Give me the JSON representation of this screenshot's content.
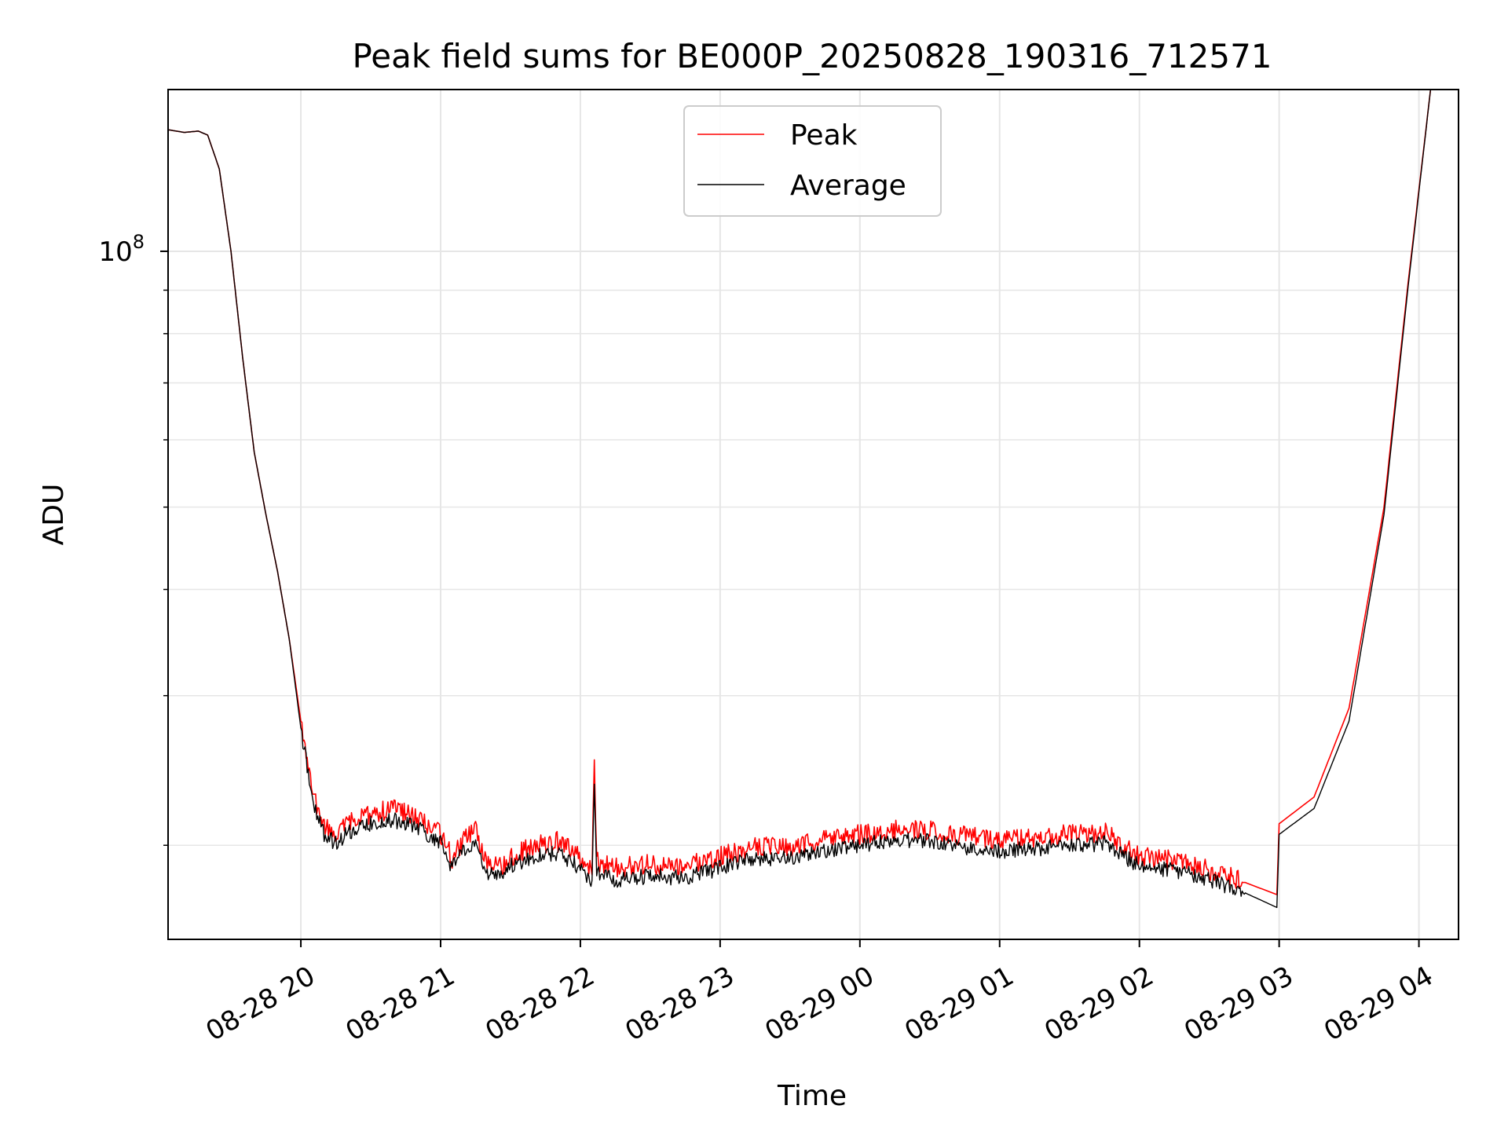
{
  "chart_data": {
    "type": "line",
    "title": "Peak field sums for BE000P_20250828_190316_712571",
    "xlabel": "Time",
    "ylabel": "ADU",
    "yscale": "log",
    "ylim": [
      15500000,
      155000000
    ],
    "y_major_tick": {
      "value": 100000000,
      "base": "10",
      "exp": "8"
    },
    "y_minor_ticks": [
      20000000,
      30000000,
      40000000,
      50000000,
      60000000,
      70000000,
      80000000,
      90000000
    ],
    "xlim": [
      "2025-08-28 19:03",
      "2025-08-29 04:17"
    ],
    "x_ticks": [
      {
        "value": "2025-08-28 20:00",
        "label": "08-28 20"
      },
      {
        "value": "2025-08-28 21:00",
        "label": "08-28 21"
      },
      {
        "value": "2025-08-28 22:00",
        "label": "08-28 22"
      },
      {
        "value": "2025-08-28 23:00",
        "label": "08-28 23"
      },
      {
        "value": "2025-08-29 00:00",
        "label": "08-29 00"
      },
      {
        "value": "2025-08-29 01:00",
        "label": "08-29 01"
      },
      {
        "value": "2025-08-29 02:00",
        "label": "08-29 02"
      },
      {
        "value": "2025-08-29 03:00",
        "label": "08-29 03"
      },
      {
        "value": "2025-08-29 04:00",
        "label": "08-29 04"
      }
    ],
    "grid": true,
    "legend_position": "upper center",
    "series": [
      {
        "name": "Peak",
        "color": "#ff0000",
        "points": [
          [
            "2025-08-28 19:03",
            139000000
          ],
          [
            "2025-08-28 19:10",
            138000000
          ],
          [
            "2025-08-28 19:16",
            138500000
          ],
          [
            "2025-08-28 19:20",
            137000000
          ],
          [
            "2025-08-28 19:25",
            125000000
          ],
          [
            "2025-08-28 19:30",
            100000000
          ],
          [
            "2025-08-28 19:35",
            75000000
          ],
          [
            "2025-08-28 19:40",
            58000000
          ],
          [
            "2025-08-28 19:45",
            49000000
          ],
          [
            "2025-08-28 19:50",
            42000000
          ],
          [
            "2025-08-28 19:55",
            35000000
          ],
          [
            "2025-08-28 20:00",
            28000000
          ],
          [
            "2025-08-28 20:05",
            23000000
          ],
          [
            "2025-08-28 20:10",
            21000000
          ],
          [
            "2025-08-28 20:15",
            20500000
          ],
          [
            "2025-08-28 20:20",
            21200000
          ],
          [
            "2025-08-28 20:30",
            21800000
          ],
          [
            "2025-08-28 20:40",
            22100000
          ],
          [
            "2025-08-28 20:50",
            21600000
          ],
          [
            "2025-08-28 21:00",
            20600000
          ],
          [
            "2025-08-28 21:05",
            19300000
          ],
          [
            "2025-08-28 21:10",
            20300000
          ],
          [
            "2025-08-28 21:15",
            20800000
          ],
          [
            "2025-08-28 21:20",
            19000000
          ],
          [
            "2025-08-28 21:25",
            18800000
          ],
          [
            "2025-08-28 21:30",
            19400000
          ],
          [
            "2025-08-28 21:40",
            20000000
          ],
          [
            "2025-08-28 21:50",
            20200000
          ],
          [
            "2025-08-28 22:00",
            19400000
          ],
          [
            "2025-08-28 22:05",
            18800000
          ],
          [
            "2025-08-28 22:06",
            24700000
          ],
          [
            "2025-08-28 22:07",
            19200000
          ],
          [
            "2025-08-28 22:15",
            18800000
          ],
          [
            "2025-08-28 22:30",
            19000000
          ],
          [
            "2025-08-28 22:45",
            18900000
          ],
          [
            "2025-08-28 23:00",
            19400000
          ],
          [
            "2025-08-28 23:15",
            19900000
          ],
          [
            "2025-08-28 23:30",
            19900000
          ],
          [
            "2025-08-28 23:45",
            20300000
          ],
          [
            "2025-08-29 00:00",
            20600000
          ],
          [
            "2025-08-29 00:15",
            20900000
          ],
          [
            "2025-08-29 00:30",
            20800000
          ],
          [
            "2025-08-29 00:45",
            20500000
          ],
          [
            "2025-08-29 01:00",
            20300000
          ],
          [
            "2025-08-29 01:15",
            20400000
          ],
          [
            "2025-08-29 01:30",
            20600000
          ],
          [
            "2025-08-29 01:45",
            20700000
          ],
          [
            "2025-08-29 02:00",
            19400000
          ],
          [
            "2025-08-29 02:15",
            19200000
          ],
          [
            "2025-08-29 02:30",
            18700000
          ],
          [
            "2025-08-29 02:45",
            18100000
          ],
          [
            "2025-08-29 02:59",
            17500000
          ],
          [
            "2025-08-29 03:00",
            21200000
          ],
          [
            "2025-08-29 03:15",
            22800000
          ],
          [
            "2025-08-29 03:30",
            29000000
          ],
          [
            "2025-08-29 03:45",
            50000000
          ],
          [
            "2025-08-29 03:55",
            90000000
          ],
          [
            "2025-08-29 04:05",
            155000000
          ]
        ]
      },
      {
        "name": "Average",
        "color": "#000000",
        "points": [
          [
            "2025-08-28 19:03",
            139000000
          ],
          [
            "2025-08-28 19:10",
            138000000
          ],
          [
            "2025-08-28 19:16",
            138500000
          ],
          [
            "2025-08-28 19:20",
            137000000
          ],
          [
            "2025-08-28 19:25",
            125000000
          ],
          [
            "2025-08-28 19:30",
            100000000
          ],
          [
            "2025-08-28 19:35",
            75000000
          ],
          [
            "2025-08-28 19:40",
            58000000
          ],
          [
            "2025-08-28 19:45",
            49000000
          ],
          [
            "2025-08-28 19:50",
            42000000
          ],
          [
            "2025-08-28 19:55",
            35000000
          ],
          [
            "2025-08-28 20:00",
            27500000
          ],
          [
            "2025-08-28 20:05",
            22600000
          ],
          [
            "2025-08-28 20:10",
            20600000
          ],
          [
            "2025-08-28 20:15",
            20100000
          ],
          [
            "2025-08-28 20:20",
            20700000
          ],
          [
            "2025-08-28 20:30",
            21200000
          ],
          [
            "2025-08-28 20:40",
            21400000
          ],
          [
            "2025-08-28 20:50",
            21000000
          ],
          [
            "2025-08-28 21:00",
            20100000
          ],
          [
            "2025-08-28 21:05",
            18800000
          ],
          [
            "2025-08-28 21:10",
            19700000
          ],
          [
            "2025-08-28 21:15",
            20100000
          ],
          [
            "2025-08-28 21:20",
            18500000
          ],
          [
            "2025-08-28 21:25",
            18300000
          ],
          [
            "2025-08-28 21:30",
            18900000
          ],
          [
            "2025-08-28 21:40",
            19400000
          ],
          [
            "2025-08-28 21:50",
            19600000
          ],
          [
            "2025-08-28 22:00",
            18800000
          ],
          [
            "2025-08-28 22:05",
            18200000
          ],
          [
            "2025-08-28 22:06",
            23200000
          ],
          [
            "2025-08-28 22:07",
            18600000
          ],
          [
            "2025-08-28 22:15",
            18200000
          ],
          [
            "2025-08-28 22:30",
            18400000
          ],
          [
            "2025-08-28 22:45",
            18300000
          ],
          [
            "2025-08-28 23:00",
            18800000
          ],
          [
            "2025-08-28 23:15",
            19300000
          ],
          [
            "2025-08-28 23:30",
            19300000
          ],
          [
            "2025-08-28 23:45",
            19700000
          ],
          [
            "2025-08-29 00:00",
            20000000
          ],
          [
            "2025-08-29 00:15",
            20300000
          ],
          [
            "2025-08-29 00:30",
            20200000
          ],
          [
            "2025-08-29 00:45",
            19900000
          ],
          [
            "2025-08-29 01:00",
            19700000
          ],
          [
            "2025-08-29 01:15",
            19800000
          ],
          [
            "2025-08-29 01:30",
            20000000
          ],
          [
            "2025-08-29 01:45",
            20100000
          ],
          [
            "2025-08-29 02:00",
            18900000
          ],
          [
            "2025-08-29 02:15",
            18700000
          ],
          [
            "2025-08-29 02:30",
            18200000
          ],
          [
            "2025-08-29 02:45",
            17600000
          ],
          [
            "2025-08-29 02:59",
            16900000
          ],
          [
            "2025-08-29 03:00",
            20600000
          ],
          [
            "2025-08-29 03:15",
            22100000
          ],
          [
            "2025-08-29 03:30",
            28000000
          ],
          [
            "2025-08-29 03:45",
            49000000
          ],
          [
            "2025-08-29 03:55",
            89000000
          ],
          [
            "2025-08-29 04:05",
            155000000
          ]
        ]
      }
    ]
  }
}
